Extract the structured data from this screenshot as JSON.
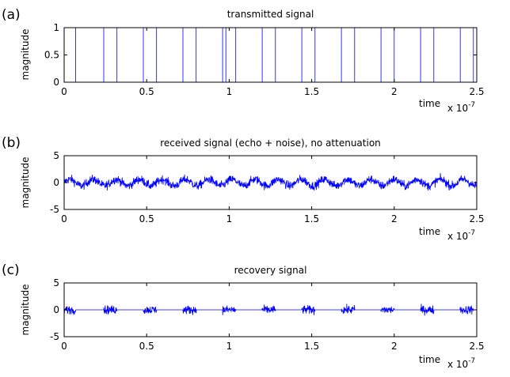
{
  "chart_data": [
    {
      "type": "line",
      "panel_label": "(a)",
      "title": "transmitted signal",
      "xlabel": "time",
      "ylabel": "magnitude",
      "x_exponent_base": "x 10",
      "x_exponent_power": "-7",
      "xlim": [
        0,
        2.5
      ],
      "ylim": [
        0,
        1
      ],
      "x_ticks": [
        "0",
        "0.5",
        "1",
        "1.5",
        "2",
        "2.5"
      ],
      "y_ticks": [
        "0",
        "0.5",
        "1"
      ],
      "color": "#0000ff",
      "grid": false,
      "series_kind": "pulse-train",
      "pulse_edges": [
        0.07,
        0.24,
        0.32,
        0.48,
        0.56,
        0.72,
        0.8,
        0.96,
        0.98,
        1.04,
        1.2,
        1.28,
        1.44,
        1.52,
        1.68,
        1.76,
        1.92,
        2.0,
        2.16,
        2.24,
        2.4,
        2.48
      ]
    },
    {
      "type": "line",
      "panel_label": "(b)",
      "title": "received signal (echo + noise), no attenuation",
      "xlabel": "time",
      "ylabel": "magnitude",
      "x_exponent_base": "x 10",
      "x_exponent_power": "-7",
      "xlim": [
        0,
        2.5
      ],
      "ylim": [
        -5,
        5
      ],
      "x_ticks": [
        "0",
        "0.5",
        "1",
        "1.5",
        "2",
        "2.5"
      ],
      "y_ticks": [
        "-5",
        "0",
        "5"
      ],
      "color": "#0000ff",
      "grid": false,
      "series_kind": "noise",
      "noise_amplitude": 2.5,
      "noise_peak": 4
    },
    {
      "type": "line",
      "panel_label": "(c)",
      "title": "recovery signal",
      "xlabel": "time",
      "ylabel": "magnitude",
      "x_exponent_base": "x 10",
      "x_exponent_power": "-7",
      "xlim": [
        0,
        2.5
      ],
      "ylim": [
        -5,
        5
      ],
      "x_ticks": [
        "0",
        "0.5",
        "1",
        "1.5",
        "2",
        "2.5"
      ],
      "y_ticks": [
        "-5",
        "0",
        "5"
      ],
      "color": "#0000ff",
      "grid": false,
      "series_kind": "gated-noise",
      "bursts": [
        [
          0.0,
          0.07
        ],
        [
          0.24,
          0.32
        ],
        [
          0.48,
          0.56
        ],
        [
          0.72,
          0.8
        ],
        [
          0.96,
          1.04
        ],
        [
          1.2,
          1.28
        ],
        [
          1.44,
          1.52
        ],
        [
          1.68,
          1.76
        ],
        [
          1.92,
          2.0
        ],
        [
          2.16,
          2.24
        ],
        [
          2.4,
          2.48
        ]
      ],
      "noise_amplitude": 2.5,
      "noise_peak": 3.5
    }
  ]
}
